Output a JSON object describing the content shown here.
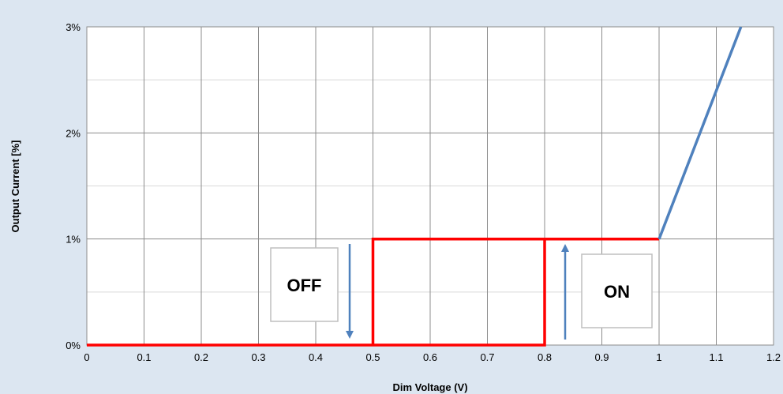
{
  "chart_data": {
    "type": "line",
    "title": "",
    "xlabel": "Dim Voltage (V)",
    "ylabel": "Output Current [%]",
    "xlim": [
      0,
      1.2
    ],
    "ylim": [
      0,
      3
    ],
    "x_ticks": [
      "0",
      "0.1",
      "0.2",
      "0.3",
      "0.4",
      "0.5",
      "0.6",
      "0.7",
      "0.8",
      "0.9",
      "1",
      "1.1",
      "1.2"
    ],
    "y_ticks": [
      "0%",
      "1%",
      "2%",
      "3%"
    ],
    "grid": true,
    "series": [
      {
        "color": "#ff0000",
        "points": [
          [
            0,
            0
          ],
          [
            0.8,
            0
          ],
          [
            0.8,
            1
          ],
          [
            1.0,
            1
          ]
        ]
      },
      {
        "color": "#ff0000",
        "points": [
          [
            1.0,
            1
          ],
          [
            0.5,
            1
          ],
          [
            0.5,
            0
          ]
        ]
      },
      {
        "color": "#4f81bd",
        "points": [
          [
            1.0,
            1
          ],
          [
            1.143,
            3
          ]
        ]
      }
    ],
    "annotations": [
      {
        "text": "OFF",
        "arrow": "down"
      },
      {
        "text": "ON",
        "arrow": "up"
      }
    ]
  }
}
